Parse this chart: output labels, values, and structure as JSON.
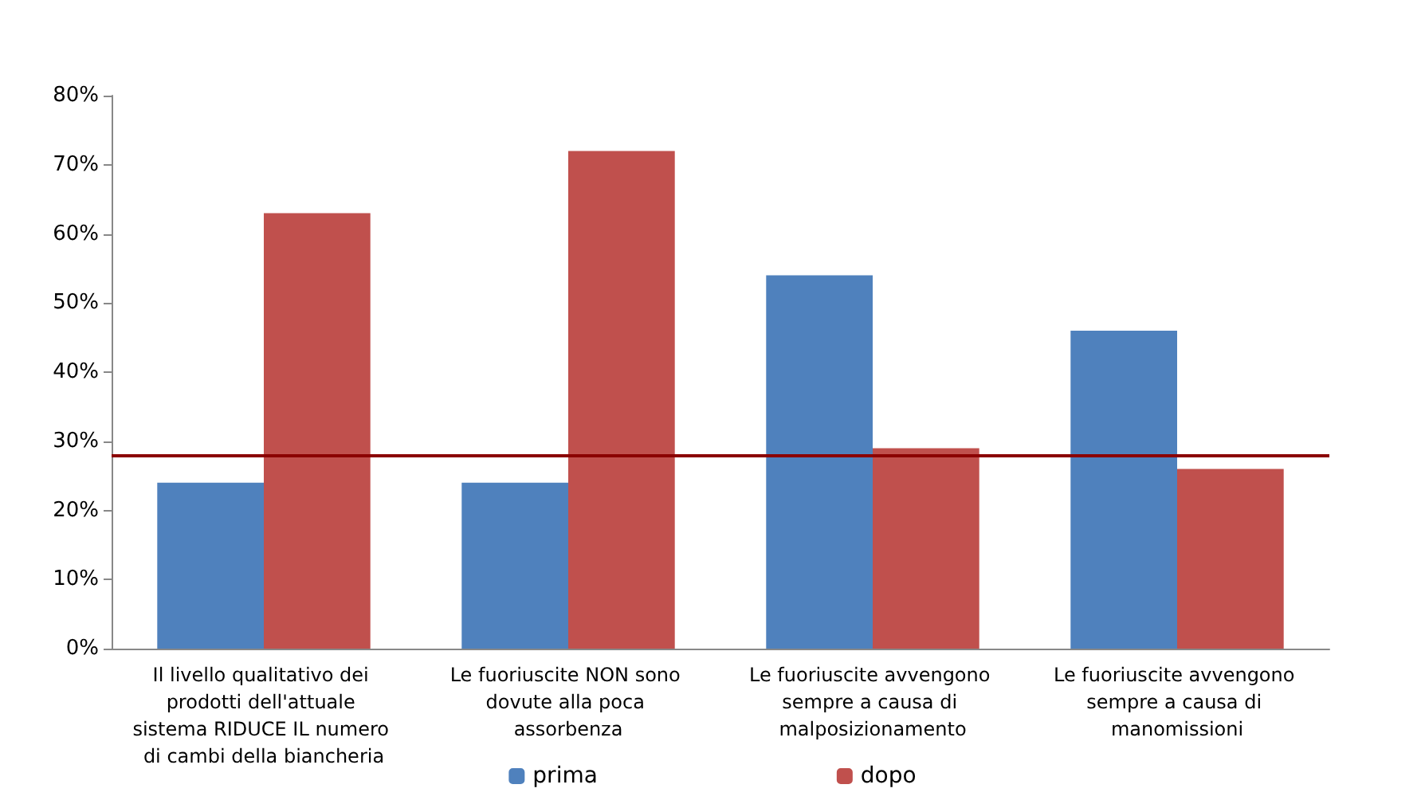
{
  "chart_data": {
    "type": "bar",
    "categories": [
      "Il livello qualitativo dei prodotti dell'attuale sistema RIDUCE IL numero di cambi della biancheria",
      "Le fuoriuscite NON sono dovute alla poca assorbenza",
      "Le fuoriuscite avvengono sempre a causa di malposizionamento",
      "Le fuoriuscite avvengono sempre a causa di manomissioni"
    ],
    "series": [
      {
        "name": "prima",
        "color": "#4f81bd",
        "values": [
          0.24,
          0.24,
          0.54,
          0.46
        ]
      },
      {
        "name": "dopo",
        "color": "#c0504d",
        "values": [
          0.63,
          0.72,
          0.29,
          0.26
        ]
      }
    ],
    "ylim": [
      0,
      0.8
    ],
    "yticks": [
      {
        "value": 0,
        "label": "0%"
      },
      {
        "value": 0.1,
        "label": "10%"
      },
      {
        "value": 0.2,
        "label": "20%"
      },
      {
        "value": 0.3,
        "label": "30%"
      },
      {
        "value": 0.4,
        "label": "40%"
      },
      {
        "value": 0.5,
        "label": "50%"
      },
      {
        "value": 0.6,
        "label": "60%"
      },
      {
        "value": 0.7,
        "label": "70%"
      },
      {
        "value": 0.8,
        "label": "80%"
      }
    ],
    "ref_lines": [
      {
        "axis": "y",
        "value": 0.28,
        "color": "#8b0000"
      }
    ],
    "grid": false,
    "legend": "bottom"
  }
}
